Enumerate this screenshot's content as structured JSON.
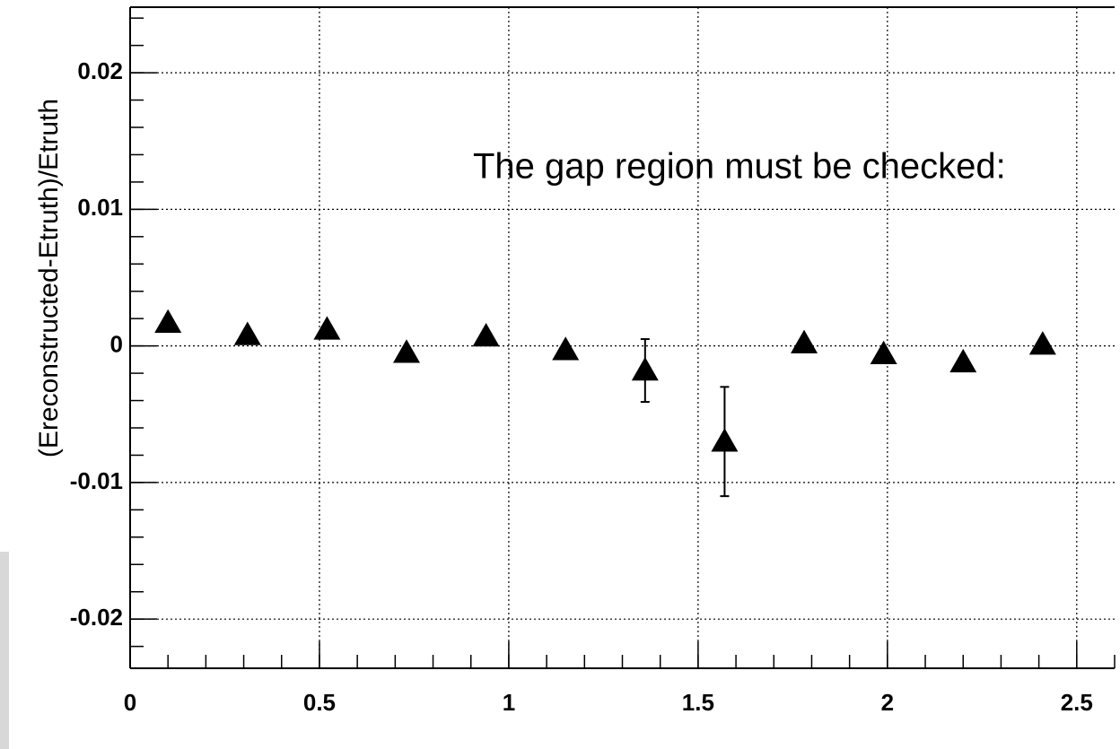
{
  "chart_data": {
    "type": "scatter",
    "y_label": "(Ereconstructed-Etruth)/Etruth",
    "annotation": "The gap region must be checked:",
    "x": [
      0.1,
      0.31,
      0.52,
      0.73,
      0.94,
      1.15,
      1.36,
      1.57,
      1.78,
      1.99,
      2.2,
      2.41
    ],
    "values": [
      0.0017,
      0.0008,
      0.0012,
      -0.0005,
      0.0007,
      -0.0003,
      -0.0018,
      -0.007,
      0.0002,
      -0.0006,
      -0.0012,
      0.0001
    ],
    "errors": [
      0,
      0,
      0,
      0,
      0,
      0,
      0.0023,
      0.004,
      0,
      0,
      0,
      0
    ],
    "color": "#000000",
    "xlim": [
      0,
      2.6
    ],
    "xticks": [
      0,
      0.5,
      1,
      1.5,
      2,
      2.5
    ],
    "ylim": [
      -0.0236,
      0.0248
    ],
    "yticks": [
      -0.02,
      -0.01,
      0,
      0.01,
      0.02
    ],
    "grid": true
  }
}
